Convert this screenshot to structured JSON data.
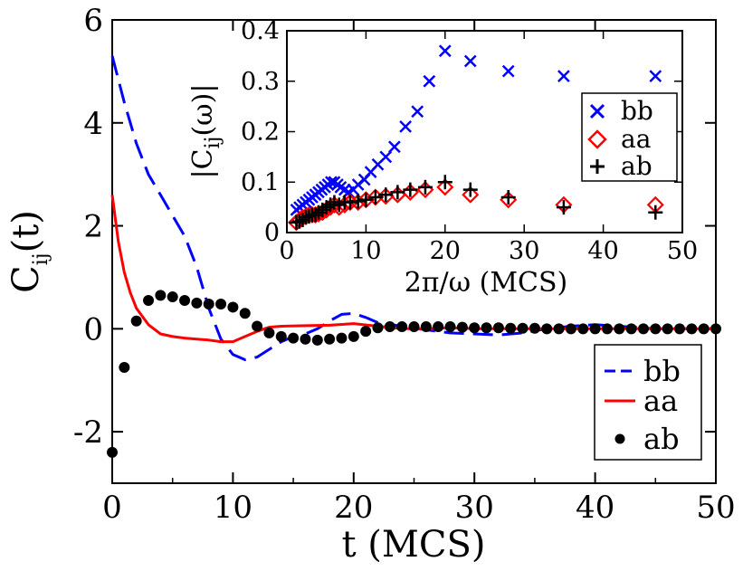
{
  "chart_data": [
    {
      "type": "line",
      "xlabel": "t (MCS)",
      "ylabel": "C_ij(t)",
      "ylabel_main": "C",
      "ylabel_sub": "ij",
      "ylabel_tail": "(t)",
      "xlim": [
        0,
        50
      ],
      "ylim": [
        -3,
        6
      ],
      "xticks": [
        0,
        10,
        20,
        30,
        40,
        50
      ],
      "yticks": [
        -2,
        0,
        2,
        4,
        6
      ],
      "grid": false,
      "legend_position": "bottom-right",
      "series": [
        {
          "name": "bb",
          "style": "dashed",
          "color": "#0000ff",
          "x": [
            0,
            1,
            2,
            3,
            4,
            5,
            6,
            7,
            8,
            9,
            10,
            11,
            12,
            13,
            14,
            15,
            16,
            17,
            18,
            19,
            20,
            21,
            22,
            24,
            26,
            28,
            30,
            32,
            34,
            36,
            38,
            40,
            42,
            45,
            50
          ],
          "y": [
            5.3,
            4.4,
            3.6,
            3.0,
            2.6,
            2.2,
            1.8,
            1.2,
            0.4,
            -0.2,
            -0.5,
            -0.6,
            -0.55,
            -0.4,
            -0.25,
            -0.15,
            -0.1,
            0.0,
            0.15,
            0.28,
            0.3,
            0.22,
            0.12,
            0.05,
            -0.02,
            -0.08,
            -0.1,
            -0.12,
            -0.08,
            0.0,
            0.05,
            0.08,
            0.05,
            0.0,
            0.0
          ]
        },
        {
          "name": "aa",
          "style": "solid",
          "color": "#ff0000",
          "x": [
            0,
            0.5,
            1,
            1.5,
            2,
            3,
            4,
            5,
            6,
            7,
            8,
            9,
            10,
            11,
            12,
            13,
            14,
            16,
            18,
            20,
            22,
            24,
            26,
            28,
            30,
            35,
            40,
            45,
            50
          ],
          "y": [
            2.6,
            1.7,
            1.1,
            0.7,
            0.4,
            0.08,
            -0.1,
            -0.15,
            -0.18,
            -0.2,
            -0.22,
            -0.25,
            -0.25,
            -0.15,
            -0.05,
            0.03,
            0.05,
            0.06,
            0.07,
            0.1,
            0.05,
            0.0,
            0.0,
            0.02,
            0.0,
            0.0,
            0.0,
            0.0,
            0.0
          ]
        },
        {
          "name": "ab",
          "style": "markers",
          "color": "#000000",
          "x": [
            0,
            1,
            2,
            3,
            4,
            5,
            6,
            7,
            8,
            9,
            10,
            11,
            12,
            13,
            14,
            15,
            16,
            17,
            18,
            19,
            20,
            21,
            22,
            23,
            24,
            25,
            26,
            27,
            28,
            29,
            30,
            31,
            32,
            33,
            34,
            35,
            36,
            37,
            38,
            39,
            40,
            41,
            42,
            43,
            44,
            45,
            46,
            47,
            48,
            49,
            50
          ],
          "y": [
            -2.4,
            -0.75,
            0.15,
            0.55,
            0.65,
            0.62,
            0.55,
            0.5,
            0.48,
            0.48,
            0.42,
            0.3,
            0.05,
            -0.08,
            -0.15,
            -0.18,
            -0.2,
            -0.22,
            -0.2,
            -0.18,
            -0.15,
            -0.05,
            0.02,
            0.04,
            0.04,
            0.04,
            0.04,
            0.04,
            0.04,
            0.03,
            0.02,
            0.02,
            0.02,
            0.01,
            0.01,
            0.01,
            0.0,
            0.0,
            0.0,
            0.0,
            0.0,
            0.0,
            0.0,
            0.0,
            0.0,
            0.0,
            0.0,
            0.0,
            0.0,
            0.0,
            0.0
          ]
        }
      ]
    },
    {
      "type": "scatter",
      "xlabel": "2π/ω (MCS)",
      "ylabel": "|C_ij(ω)|",
      "ylabel_head": "|C",
      "ylabel_sub": "ij",
      "ylabel_tail": "(ω)|",
      "xlim": [
        0,
        50
      ],
      "ylim": [
        0,
        0.4
      ],
      "xticks": [
        0,
        10,
        20,
        30,
        40,
        50
      ],
      "yticks": [
        0,
        0.1,
        0.2,
        0.3,
        0.4
      ],
      "grid": false,
      "legend_position": "right",
      "series": [
        {
          "name": "bb",
          "marker": "x",
          "color": "#0000ff",
          "x": [
            1.2,
            1.6,
            2.0,
            2.4,
            2.8,
            3.2,
            3.6,
            4.0,
            4.4,
            4.8,
            5.2,
            5.6,
            6.0,
            6.4,
            6.8,
            7.3,
            7.8,
            8.4,
            9.0,
            9.8,
            10.6,
            11.5,
            12.5,
            13.6,
            15.0,
            16.5,
            18.0,
            20.0,
            23.2,
            28.0,
            35.0,
            46.6
          ],
          "y": [
            0.045,
            0.05,
            0.055,
            0.06,
            0.065,
            0.07,
            0.075,
            0.08,
            0.085,
            0.09,
            0.095,
            0.1,
            0.1,
            0.095,
            0.09,
            0.085,
            0.08,
            0.085,
            0.095,
            0.105,
            0.12,
            0.135,
            0.15,
            0.17,
            0.21,
            0.24,
            0.3,
            0.36,
            0.34,
            0.32,
            0.31,
            0.31
          ]
        },
        {
          "name": "aa",
          "marker": "diamond",
          "color": "#ff0000",
          "x": [
            1.2,
            1.6,
            2.0,
            2.4,
            2.8,
            3.2,
            3.6,
            4.0,
            4.5,
            5.0,
            5.5,
            6.0,
            6.6,
            7.3,
            8.0,
            9.0,
            10.0,
            11.2,
            12.5,
            14.0,
            15.6,
            17.5,
            20.0,
            23.2,
            28.0,
            35.0,
            46.6
          ],
          "y": [
            0.02,
            0.025,
            0.03,
            0.032,
            0.035,
            0.035,
            0.035,
            0.037,
            0.04,
            0.045,
            0.05,
            0.055,
            0.05,
            0.055,
            0.06,
            0.06,
            0.065,
            0.07,
            0.072,
            0.075,
            0.08,
            0.085,
            0.09,
            0.075,
            0.065,
            0.055,
            0.055
          ]
        },
        {
          "name": "ab",
          "marker": "plus",
          "color": "#000000",
          "x": [
            1.2,
            1.6,
            2.0,
            2.4,
            2.8,
            3.2,
            3.6,
            4.0,
            4.5,
            5.0,
            5.5,
            6.0,
            6.6,
            7.3,
            8.0,
            9.0,
            10.0,
            11.2,
            12.5,
            14.0,
            15.6,
            17.5,
            20.0,
            23.2,
            28.0,
            35.0,
            46.6
          ],
          "y": [
            0.02,
            0.022,
            0.025,
            0.03,
            0.032,
            0.035,
            0.035,
            0.04,
            0.045,
            0.05,
            0.055,
            0.06,
            0.055,
            0.06,
            0.06,
            0.062,
            0.065,
            0.07,
            0.075,
            0.08,
            0.085,
            0.09,
            0.1,
            0.085,
            0.07,
            0.05,
            0.04
          ]
        }
      ]
    }
  ]
}
